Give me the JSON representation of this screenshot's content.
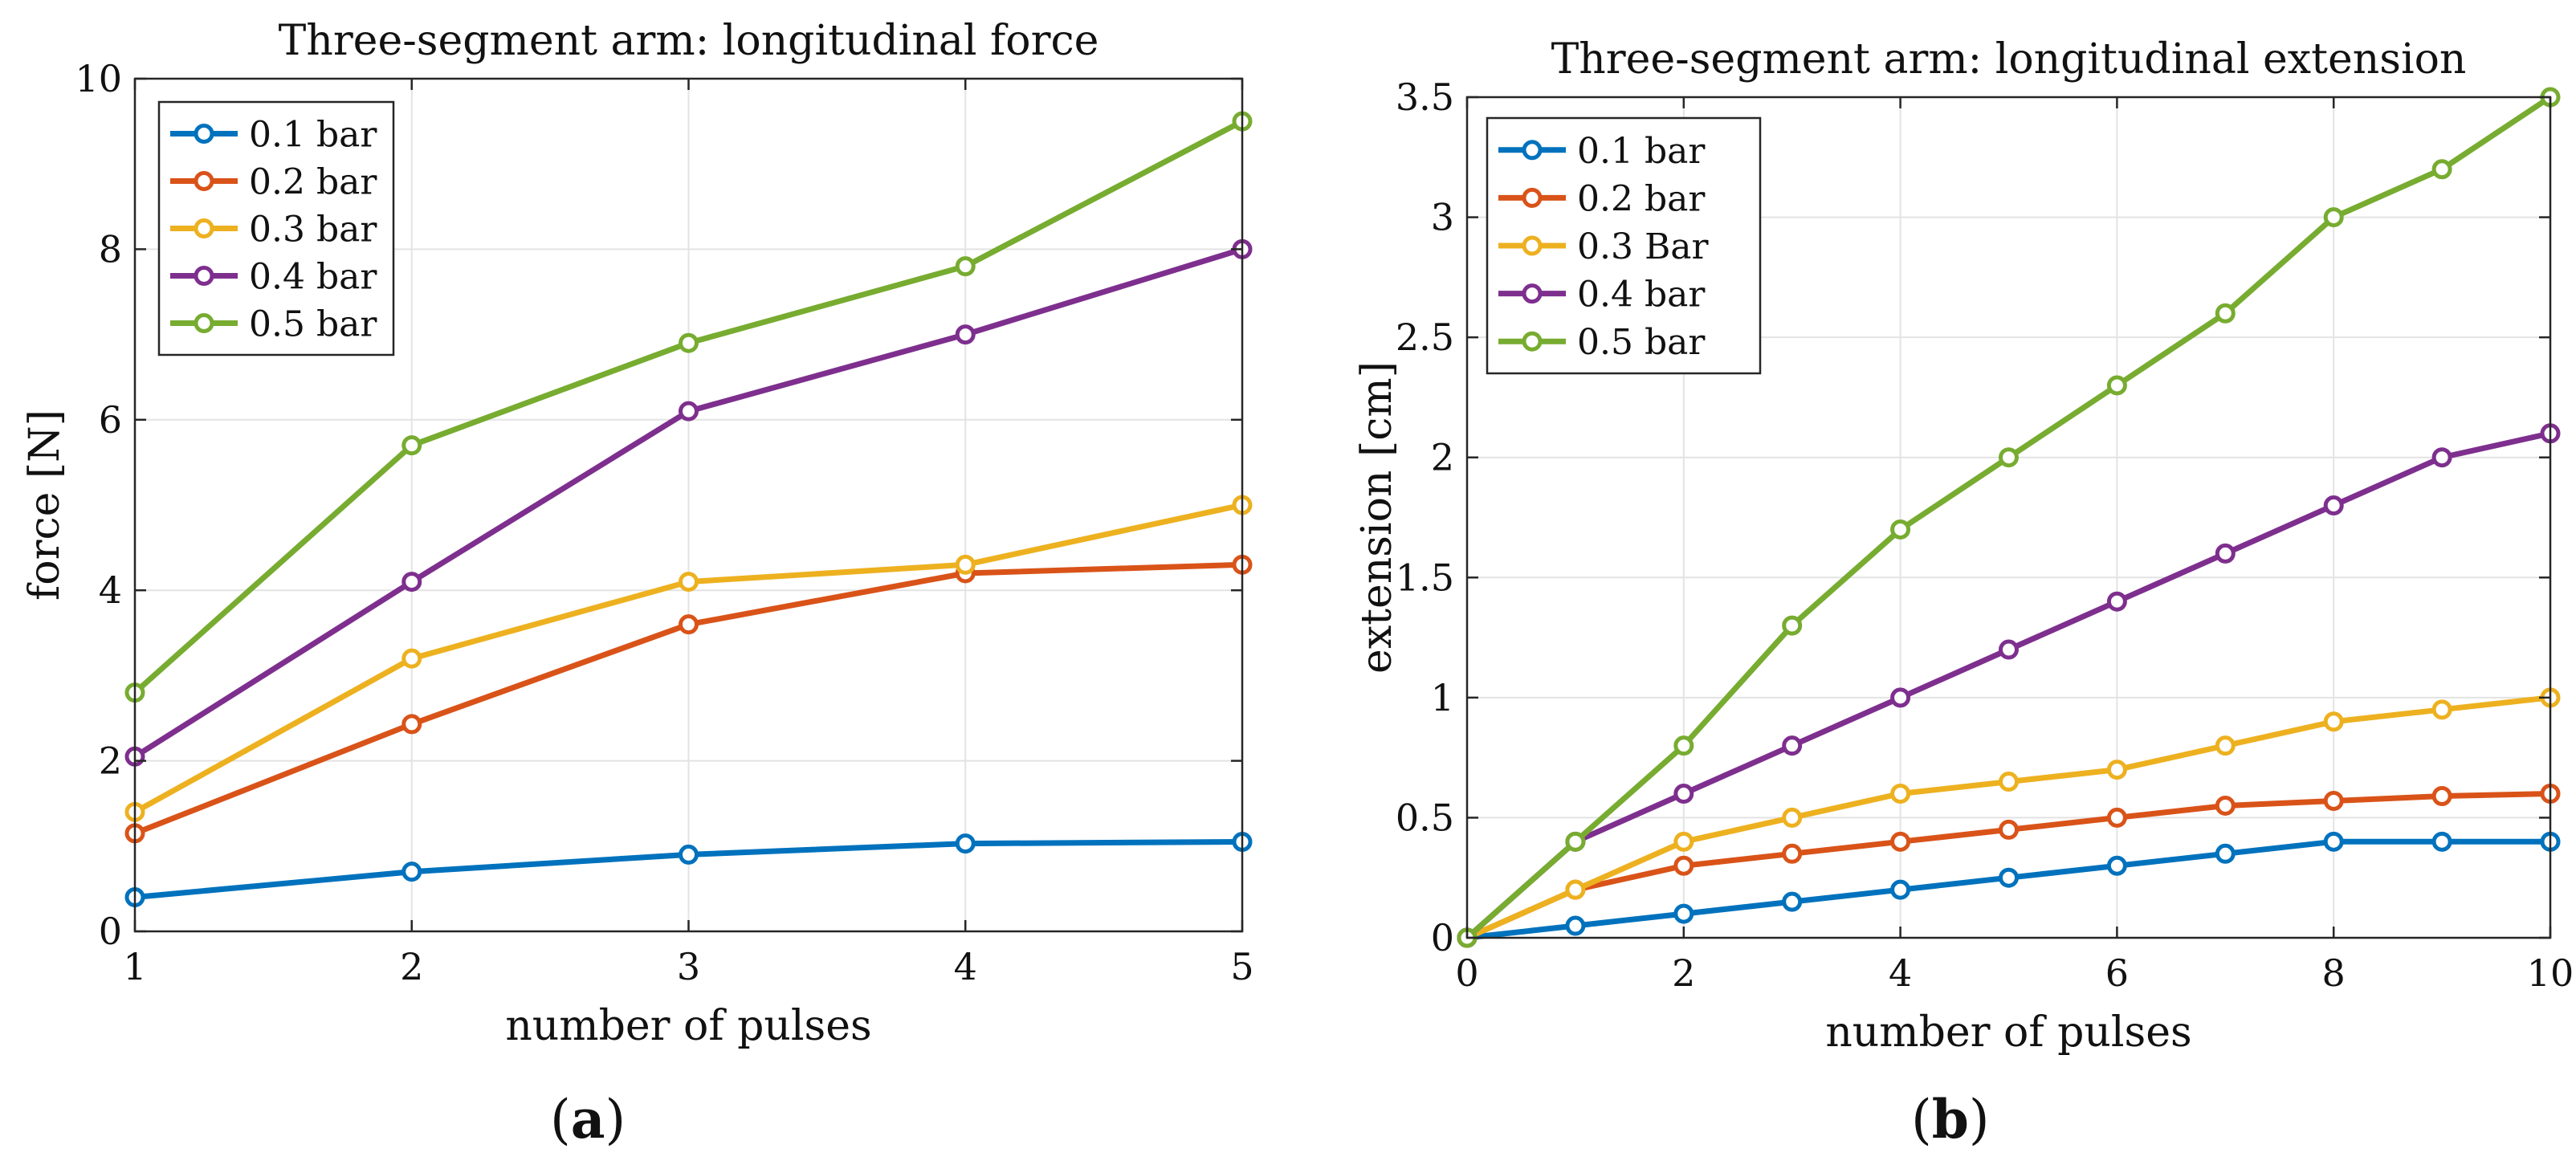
{
  "colors": {
    "series": [
      "#0072BD",
      "#D95319",
      "#EDB120",
      "#7E2F8E",
      "#77AC30"
    ],
    "grid": "#e3e3e3",
    "axis": "#262626"
  },
  "panels": {
    "a": {
      "open": "(",
      "letter": "a",
      "close": ")"
    },
    "b": {
      "open": "(",
      "letter": "b",
      "close": ")"
    }
  },
  "chart_data": [
    {
      "type": "line",
      "title": "Three-segment arm: longitudinal force",
      "xlabel": "number of pulses",
      "ylabel": "force [N]",
      "xlim": [
        1,
        5
      ],
      "ylim": [
        0,
        10
      ],
      "xticks": [
        1,
        2,
        3,
        4,
        5
      ],
      "yticks": [
        0,
        2,
        4,
        6,
        8,
        10
      ],
      "grid": true,
      "legend_position": "top-left",
      "x": [
        1,
        2,
        3,
        4,
        5
      ],
      "series": [
        {
          "name": "0.1 bar",
          "values": [
            0.4,
            0.7,
            0.9,
            1.03,
            1.05
          ]
        },
        {
          "name": "0.2 bar",
          "values": [
            1.15,
            2.43,
            3.6,
            4.2,
            4.3
          ]
        },
        {
          "name": "0.3 bar",
          "values": [
            1.4,
            3.2,
            4.1,
            4.3,
            5.0
          ]
        },
        {
          "name": "0.4 bar",
          "values": [
            2.05,
            4.1,
            6.1,
            7.0,
            8.0
          ]
        },
        {
          "name": "0.5 bar",
          "values": [
            2.8,
            5.7,
            6.9,
            7.8,
            9.5
          ]
        }
      ]
    },
    {
      "type": "line",
      "title": "Three-segment arm: longitudinal extension",
      "xlabel": "number of pulses",
      "ylabel": "extension [cm]",
      "xlim": [
        0,
        10
      ],
      "ylim": [
        0,
        3.5
      ],
      "xticks": [
        0,
        2,
        4,
        6,
        8,
        10
      ],
      "yticks": [
        0,
        0.5,
        1,
        1.5,
        2,
        2.5,
        3,
        3.5
      ],
      "grid": true,
      "legend_position": "top-left",
      "x": [
        0,
        1,
        2,
        3,
        4,
        5,
        6,
        7,
        8,
        9,
        10
      ],
      "series": [
        {
          "name": "0.1 bar",
          "values": [
            0,
            0.05,
            0.1,
            0.15,
            0.2,
            0.25,
            0.3,
            0.35,
            0.4,
            0.4,
            0.4
          ]
        },
        {
          "name": "0.2 bar",
          "values": [
            0,
            0.2,
            0.3,
            0.35,
            0.4,
            0.45,
            0.5,
            0.55,
            0.57,
            0.59,
            0.6
          ]
        },
        {
          "name": "0.3 Bar",
          "values": [
            0,
            0.2,
            0.4,
            0.5,
            0.6,
            0.65,
            0.7,
            0.8,
            0.9,
            0.95,
            1.0
          ]
        },
        {
          "name": "0.4 bar",
          "values": [
            0,
            0.4,
            0.6,
            0.8,
            1.0,
            1.2,
            1.4,
            1.6,
            1.8,
            2.0,
            2.1
          ]
        },
        {
          "name": "0.5 bar",
          "values": [
            0,
            0.4,
            0.8,
            1.3,
            1.7,
            2.0,
            2.3,
            2.6,
            3.0,
            3.2,
            3.5
          ]
        }
      ]
    }
  ]
}
